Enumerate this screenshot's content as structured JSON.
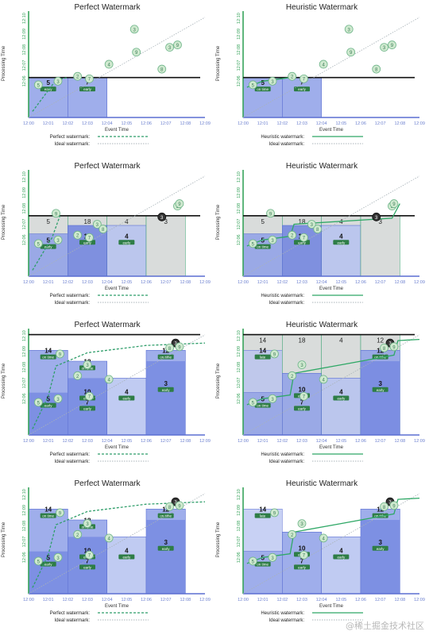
{
  "colors": {
    "axis_green": "#37a35b",
    "window_fill": "#8ea0e8",
    "window_fill_dark": "#6f83df",
    "window_fill_light": "#b5c2f0",
    "gray_box": "#d9dcdb",
    "perfect_line": "#2f9e6a",
    "heuristic_line": "#2fa866",
    "ideal_line": "#a9b3b8",
    "dot_fill": "#cfe9cf",
    "dot_stroke": "#6fb58a",
    "dark_dot": "#333333",
    "grid_text": "#6b7fcf",
    "black_line": "#111111"
  },
  "labels": {
    "perfect_title": "Perfect Watermark",
    "heuristic_title": "Heuristic Watermark",
    "x_axis": "Event Time",
    "y_axis": "Processing Time",
    "perfect_legend": "Perfect watermark:",
    "heuristic_legend": "Heuristic watermark:",
    "ideal_legend": "Ideal watermark:",
    "early": "early",
    "on_time": "on time",
    "late": "late"
  },
  "x_ticks": [
    "12:00",
    "12:01",
    "12:02",
    "12:03",
    "12:04",
    "12:05",
    "12:06",
    "12:07",
    "12:08",
    "12:09"
  ],
  "y_ticks": [
    "12:06",
    "12:07",
    "12:08",
    "12:09",
    "12:10"
  ],
  "credit": "@稀土掘金技术社区",
  "panels": [
    {
      "row": 0,
      "col": 0,
      "kind": "perfect",
      "now": 12.3,
      "watermark": [
        [
          0.2,
          9.5
        ],
        [
          1.4,
          12.1
        ],
        [
          2.0,
          12.3
        ]
      ],
      "windows": [
        {
          "x0": 0,
          "x1": 2,
          "top": 12.3,
          "label": "5",
          "tag": "early",
          "grey": false,
          "shade": "mid"
        },
        {
          "x0": 2,
          "x1": 4,
          "top": 12.3,
          "label": "7",
          "tag": "early",
          "grey": false,
          "shade": "mid"
        }
      ],
      "dots": [
        [
          0.5,
          11.7,
          "5",
          false
        ],
        [
          1.5,
          12.0,
          "3",
          false
        ],
        [
          2.5,
          12.4,
          "2",
          false
        ],
        [
          3.1,
          12.2,
          "7",
          false
        ],
        [
          5.5,
          14.4,
          "9",
          false
        ],
        [
          5.4,
          16.3,
          "3",
          false
        ],
        [
          4.1,
          13.4,
          "4",
          false
        ],
        [
          6.8,
          13.0,
          "8",
          false
        ],
        [
          7.2,
          14.8,
          "3",
          false
        ],
        [
          7.6,
          15.0,
          "9",
          false
        ]
      ]
    },
    {
      "row": 0,
      "col": 1,
      "kind": "heuristic",
      "now": 12.3,
      "watermark": [
        [
          0.2,
          11.5
        ],
        [
          1.0,
          12.0
        ],
        [
          2.4,
          12.3
        ]
      ],
      "windows": [
        {
          "x0": 0,
          "x1": 2,
          "top": 12.3,
          "label": "5",
          "tag": "on time",
          "grey": false,
          "shade": "mid"
        },
        {
          "x0": 2,
          "x1": 4,
          "top": 12.3,
          "label": "7",
          "tag": "early",
          "grey": false,
          "shade": "mid"
        }
      ],
      "dots": [
        [
          0.5,
          11.7,
          "5",
          false
        ],
        [
          1.5,
          12.0,
          "3",
          false
        ],
        [
          2.5,
          12.4,
          "2",
          false
        ],
        [
          3.1,
          12.2,
          "7",
          false
        ],
        [
          5.5,
          14.4,
          "9",
          false
        ],
        [
          5.4,
          16.3,
          "3",
          false
        ],
        [
          4.1,
          13.4,
          "4",
          false
        ],
        [
          6.8,
          13.0,
          "8",
          false
        ],
        [
          7.2,
          14.8,
          "3",
          false
        ],
        [
          7.6,
          15.0,
          "9",
          false
        ]
      ]
    },
    {
      "row": 1,
      "col": 0,
      "kind": "perfect",
      "now": 14.0,
      "watermark": [
        [
          0.2,
          9.5
        ],
        [
          1.2,
          12.2
        ],
        [
          1.6,
          14.0
        ]
      ],
      "windows": [
        {
          "x0": 0,
          "x1": 2,
          "top": 12.5,
          "label": "5",
          "tag": "early",
          "grey": true,
          "greylabel": "5",
          "shade": "mid"
        },
        {
          "x0": 2,
          "x1": 4,
          "top": 13.2,
          "label": "10",
          "tag": "early",
          "grey": true,
          "greylabel": "18",
          "shade": "dark"
        },
        {
          "x0": 4,
          "x1": 6,
          "top": 13.2,
          "label": "4",
          "tag": "early",
          "grey": true,
          "greylabel": "4",
          "shade": "light"
        },
        {
          "x0": 6,
          "x1": 8,
          "top": 14.0,
          "label": "",
          "tag": "",
          "grey": true,
          "greylabel": "3",
          "shade": "none"
        }
      ],
      "dots": [
        [
          0.5,
          11.7,
          "5",
          false
        ],
        [
          1.5,
          12.0,
          "3",
          false
        ],
        [
          2.5,
          12.4,
          "2",
          false
        ],
        [
          3.1,
          12.2,
          "7",
          false
        ],
        [
          1.4,
          14.2,
          "9",
          false
        ],
        [
          3.5,
          13.3,
          "3",
          false
        ],
        [
          3.8,
          12.9,
          "8",
          false
        ],
        [
          6.8,
          13.9,
          "3",
          true
        ],
        [
          7.6,
          14.8,
          "3",
          false
        ],
        [
          7.7,
          15.0,
          "9",
          false
        ]
      ]
    },
    {
      "row": 1,
      "col": 1,
      "kind": "heuristic",
      "now": 14.0,
      "watermark": [
        [
          0.2,
          11.5
        ],
        [
          1.0,
          12.0
        ],
        [
          2.4,
          12.3
        ],
        [
          2.6,
          13.3
        ],
        [
          7.6,
          13.8
        ],
        [
          8.0,
          15.0
        ]
      ],
      "windows": [
        {
          "x0": 0,
          "x1": 2,
          "top": 12.5,
          "label": "5",
          "tag": "on time",
          "grey": true,
          "greylabel": "5",
          "shade": "mid"
        },
        {
          "x0": 2,
          "x1": 4,
          "top": 13.2,
          "label": "10",
          "tag": "early",
          "grey": true,
          "greylabel": "18",
          "shade": "dark"
        },
        {
          "x0": 4,
          "x1": 6,
          "top": 13.2,
          "label": "4",
          "tag": "early",
          "grey": true,
          "greylabel": "4",
          "shade": "light"
        },
        {
          "x0": 6,
          "x1": 8,
          "top": 14.0,
          "label": "",
          "tag": "",
          "grey": true,
          "greylabel": "3",
          "shade": "none"
        }
      ],
      "dots": [
        [
          0.5,
          11.7,
          "5",
          false
        ],
        [
          1.5,
          12.0,
          "3",
          false
        ],
        [
          2.5,
          12.4,
          "2",
          false
        ],
        [
          3.1,
          12.2,
          "7",
          false
        ],
        [
          1.4,
          14.2,
          "9",
          false
        ],
        [
          3.5,
          13.3,
          "3",
          false
        ],
        [
          3.8,
          12.9,
          "8",
          false
        ],
        [
          6.8,
          13.9,
          "3",
          true
        ],
        [
          7.6,
          14.8,
          "3",
          false
        ],
        [
          7.7,
          15.0,
          "9",
          false
        ]
      ]
    },
    {
      "row": 2,
      "col": 0,
      "kind": "perfect",
      "now": 17.3,
      "watermark": [
        [
          0.2,
          9.5
        ],
        [
          1.0,
          12.2
        ],
        [
          1.4,
          14.7
        ],
        [
          3.0,
          15.8
        ],
        [
          6.0,
          16.4
        ],
        [
          9.0,
          16.6
        ]
      ],
      "windows": [
        {
          "x0": 0,
          "x1": 2,
          "top": 16.0,
          "label": "14",
          "tag": "on time",
          "grey": false,
          "shade": "mid",
          "sublabel": "5",
          "subtag": "early",
          "subtop": 12.5
        },
        {
          "x0": 2,
          "x1": 4,
          "top": 15.1,
          "label": "18",
          "tag": "on time",
          "grey": false,
          "shade": "mid",
          "sublabel": "10",
          "subtag": "early",
          "subtop": 13.7,
          "sub2label": "7",
          "sub2tag": "early"
        },
        {
          "x0": 4,
          "x1": 6,
          "top": 13.7,
          "label": "4",
          "tag": "early",
          "grey": false,
          "shade": "light"
        },
        {
          "x0": 6,
          "x1": 8,
          "top": 16.0,
          "label": "12",
          "tag": "on time",
          "grey": false,
          "shade": "mid",
          "sublabel": "3",
          "subtag": "early",
          "subtop": 15.1
        }
      ],
      "dots": [
        [
          0.5,
          11.7,
          "5",
          false
        ],
        [
          1.5,
          12.0,
          "3",
          false
        ],
        [
          2.5,
          13.9,
          "2",
          false
        ],
        [
          3.1,
          12.2,
          "7",
          false
        ],
        [
          1.6,
          15.7,
          "9",
          false
        ],
        [
          4.1,
          13.6,
          "4",
          false
        ],
        [
          3.0,
          14.8,
          "3",
          false
        ],
        [
          7.5,
          16.6,
          "3",
          true
        ],
        [
          7.2,
          16.2,
          "8",
          false
        ],
        [
          7.7,
          16.3,
          "9",
          false
        ]
      ]
    },
    {
      "row": 2,
      "col": 1,
      "kind": "heuristic",
      "now": 17.3,
      "watermark": [
        [
          0.2,
          11.5
        ],
        [
          1.0,
          12.0
        ],
        [
          2.4,
          12.3
        ],
        [
          2.6,
          14.1
        ],
        [
          5.0,
          14.8
        ],
        [
          7.7,
          15.6
        ],
        [
          7.9,
          16.8
        ],
        [
          9.0,
          16.9
        ]
      ],
      "windows": [
        {
          "x0": 0,
          "x1": 2,
          "top": 12.5,
          "label": "5",
          "tag": "on time",
          "grey": true,
          "greylabel": "14",
          "shade": "mid",
          "latelabel": "14",
          "latetag": "late",
          "latetop": 16.0
        },
        {
          "x0": 2,
          "x1": 4,
          "top": 14.1,
          "label": "10",
          "tag": "early",
          "grey": true,
          "greylabel": "18",
          "shade": "mid",
          "sub2label": "7",
          "sub2tag": "early"
        },
        {
          "x0": 4,
          "x1": 6,
          "top": 13.7,
          "label": "4",
          "tag": "early",
          "grey": true,
          "greylabel": "4",
          "shade": "light"
        },
        {
          "x0": 6,
          "x1": 8,
          "top": 16.0,
          "label": "12",
          "tag": "on time",
          "grey": true,
          "greylabel": "12",
          "shade": "mid",
          "sublabel": "3",
          "subtag": "early",
          "subtop": 15.1
        }
      ],
      "dots": [
        [
          0.5,
          11.7,
          "5",
          false
        ],
        [
          1.5,
          12.0,
          "3",
          false
        ],
        [
          2.5,
          13.9,
          "2",
          false
        ],
        [
          3.1,
          12.2,
          "7",
          false
        ],
        [
          1.6,
          15.7,
          "9",
          false
        ],
        [
          4.1,
          13.6,
          "4",
          false
        ],
        [
          3.0,
          14.8,
          "3",
          false
        ],
        [
          7.5,
          16.6,
          "3",
          true
        ],
        [
          7.2,
          16.2,
          "8",
          false
        ],
        [
          7.7,
          16.3,
          "9",
          false
        ]
      ]
    },
    {
      "row": 3,
      "col": 0,
      "kind": "perfect",
      "now": null,
      "watermark": [
        [
          0.2,
          9.5
        ],
        [
          1.0,
          12.2
        ],
        [
          1.4,
          14.7
        ],
        [
          3.0,
          15.8
        ],
        [
          6.0,
          16.4
        ],
        [
          9.0,
          16.6
        ]
      ],
      "windows": [
        {
          "x0": 0,
          "x1": 2,
          "top": 16.0,
          "label": "14",
          "tag": "on time",
          "grey": false,
          "shade": "mid",
          "sublabel": "5",
          "subtag": "early",
          "subtop": 12.5
        },
        {
          "x0": 2,
          "x1": 4,
          "top": 15.1,
          "label": "18",
          "tag": "on time",
          "grey": false,
          "shade": "mid",
          "sublabel": "10",
          "subtag": "early",
          "subtop": 13.7,
          "sub2label": "7",
          "sub2tag": "early"
        },
        {
          "x0": 4,
          "x1": 6,
          "top": 13.7,
          "label": "4",
          "tag": "early",
          "grey": false,
          "shade": "light"
        },
        {
          "x0": 6,
          "x1": 8,
          "top": 16.0,
          "label": "12",
          "tag": "on time",
          "grey": false,
          "shade": "mid",
          "sublabel": "3",
          "subtag": "early",
          "subtop": 15.1
        }
      ],
      "dots": [
        [
          0.5,
          11.7,
          "5",
          false
        ],
        [
          1.5,
          12.0,
          "3",
          false
        ],
        [
          2.5,
          13.9,
          "2",
          false
        ],
        [
          3.1,
          12.2,
          "7",
          false
        ],
        [
          1.6,
          15.7,
          "9",
          false
        ],
        [
          4.1,
          13.6,
          "4",
          false
        ],
        [
          3.0,
          14.8,
          "3",
          false
        ],
        [
          7.5,
          16.6,
          "3",
          true
        ],
        [
          7.2,
          16.2,
          "8",
          false
        ],
        [
          7.7,
          16.3,
          "9",
          false
        ]
      ]
    },
    {
      "row": 3,
      "col": 1,
      "kind": "heuristic",
      "now": null,
      "watermark": [
        [
          0.2,
          11.5
        ],
        [
          1.0,
          12.0
        ],
        [
          2.4,
          12.3
        ],
        [
          2.6,
          14.1
        ],
        [
          5.0,
          14.8
        ],
        [
          7.7,
          15.6
        ],
        [
          7.9,
          16.8
        ],
        [
          9.0,
          16.9
        ]
      ],
      "windows": [
        {
          "x0": 0,
          "x1": 2,
          "top": 12.5,
          "label": "5",
          "tag": "on time",
          "grey": false,
          "shade": "mid",
          "latelabel": "14",
          "latetag": "late",
          "latetop": 16.0
        },
        {
          "x0": 2,
          "x1": 4,
          "top": 14.1,
          "label": "10",
          "tag": "early",
          "grey": false,
          "shade": "mid",
          "sub2label": "7",
          "sub2tag": "early"
        },
        {
          "x0": 4,
          "x1": 6,
          "top": 13.7,
          "label": "4",
          "tag": "early",
          "grey": false,
          "shade": "light"
        },
        {
          "x0": 6,
          "x1": 8,
          "top": 16.0,
          "label": "12",
          "tag": "on time",
          "grey": false,
          "shade": "mid",
          "sublabel": "3",
          "subtag": "early",
          "subtop": 15.1
        }
      ],
      "dots": [
        [
          0.5,
          11.7,
          "5",
          false
        ],
        [
          1.5,
          12.0,
          "3",
          false
        ],
        [
          2.5,
          13.9,
          "2",
          false
        ],
        [
          3.1,
          12.2,
          "7",
          false
        ],
        [
          1.6,
          15.7,
          "9",
          false
        ],
        [
          4.1,
          13.6,
          "4",
          false
        ],
        [
          3.0,
          14.8,
          "3",
          false
        ],
        [
          7.5,
          16.6,
          "3",
          true
        ],
        [
          7.2,
          16.2,
          "8",
          false
        ],
        [
          7.7,
          16.3,
          "9",
          false
        ]
      ]
    }
  ]
}
